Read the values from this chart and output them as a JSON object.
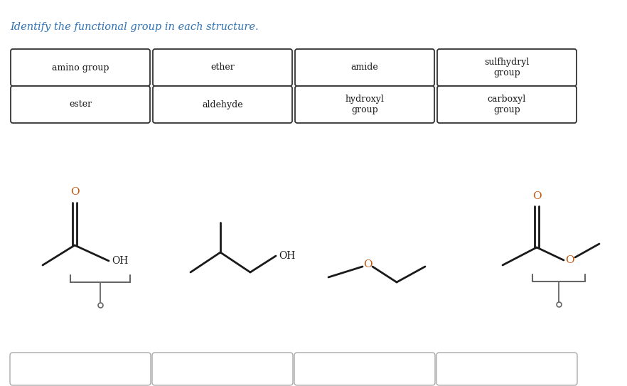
{
  "title": "Identify the functional group in each structure.",
  "title_color_blue": "#2e74b5",
  "title_color_red": "#c00000",
  "title_color_green": "#375623",
  "bg_color": "#ffffff",
  "answer_boxes_row1": [
    "amino group",
    "ether",
    "amide",
    "sulfhydryl\ngroup"
  ],
  "answer_boxes_row2": [
    "ester",
    "aldehyde",
    "hydroxyl\ngroup",
    "carboxyl\ngroup"
  ],
  "O_color": "#c55a11",
  "bond_color": "#1a1a1a",
  "bracket_color": "#666666",
  "box_edge_color": "#333333",
  "answer_box_edge_color": "#aaaaaa",
  "title_fontsize": 10.5,
  "label_fontsize": 9,
  "mol_fontsize": 10
}
